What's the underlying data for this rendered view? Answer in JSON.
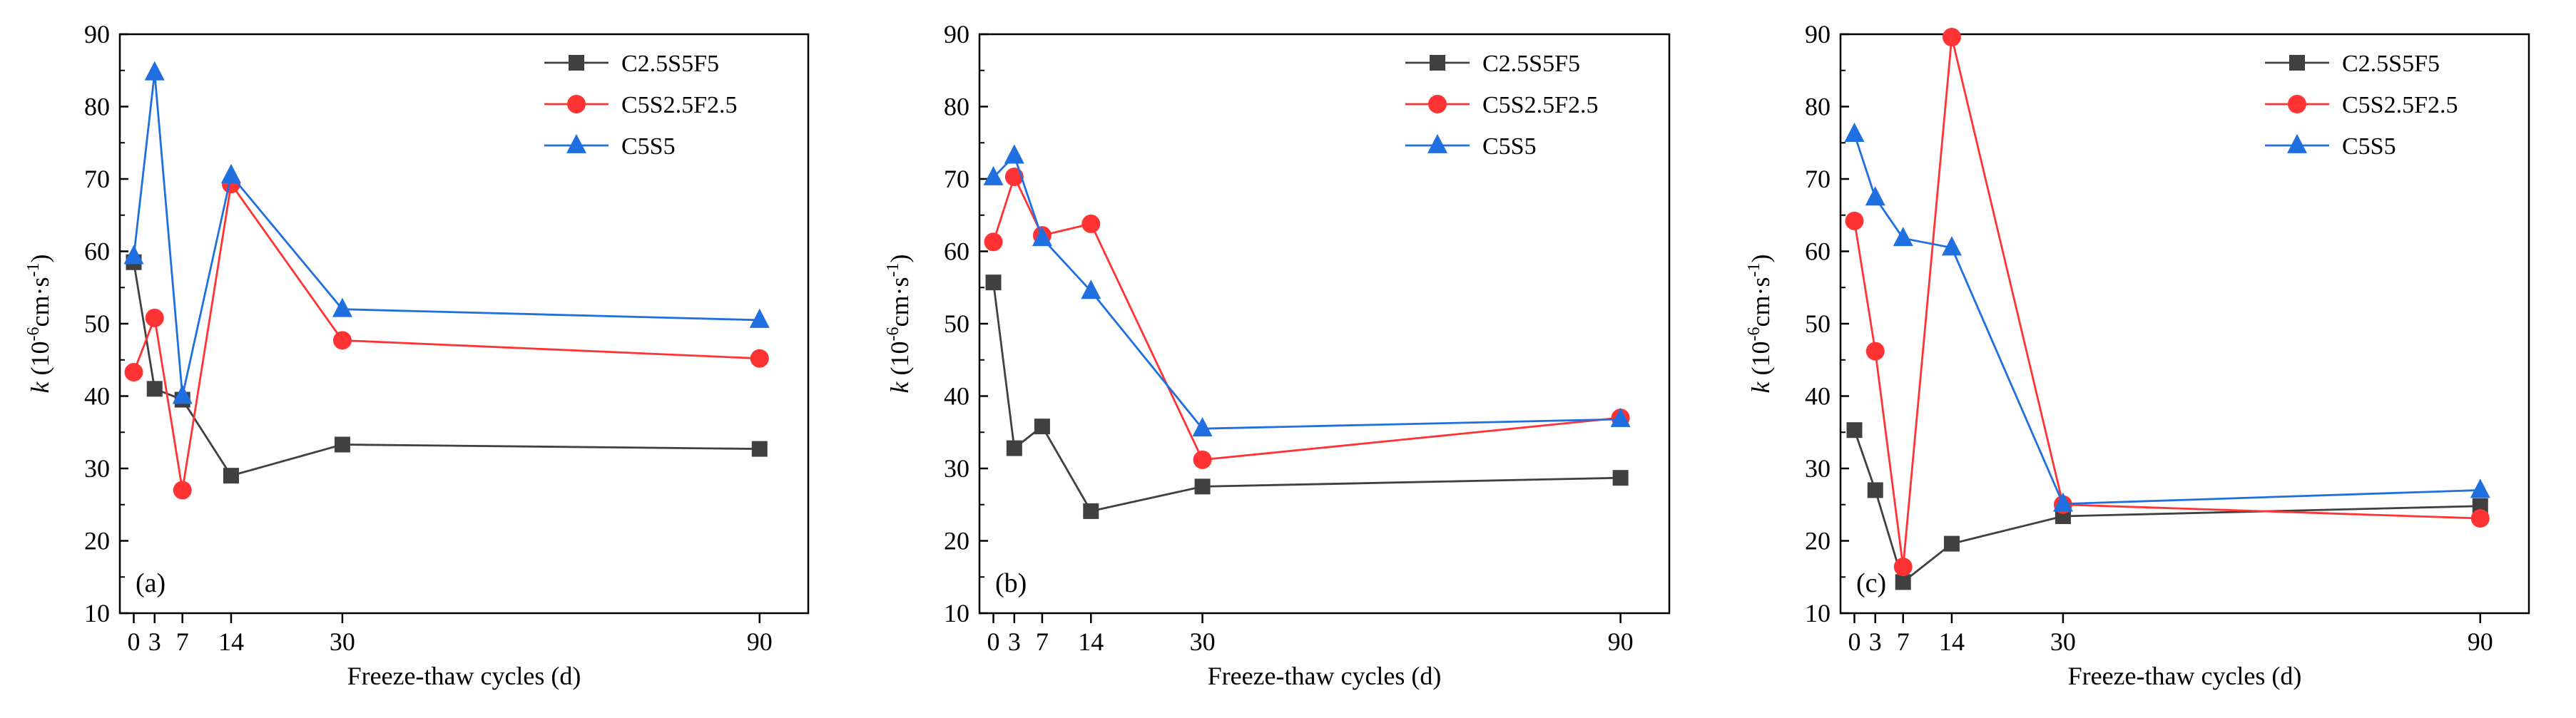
{
  "figure": {
    "colors": {
      "C2.5S5F5": "#404040",
      "C5S2.5F2.5": "#ff3333",
      "C5S5": "#1f6fe0"
    },
    "ylabel": {
      "prefix": "k",
      "text": " (10",
      "sup1": "-6",
      "mid": "cm·s",
      "sup2": "-1",
      "suffix": ")"
    }
  },
  "chart_data": [
    {
      "type": "line",
      "panel_label": "(a)",
      "xlabel": "Freeze-thaw cycles (d)",
      "ylabel": "k (10^-6 cm·s^-1)",
      "xlim": [
        -2,
        97
      ],
      "ylim": [
        10,
        90
      ],
      "xticks": [
        0,
        3,
        7,
        14,
        30,
        90
      ],
      "yticks": [
        10,
        20,
        30,
        40,
        50,
        60,
        70,
        80,
        90
      ],
      "legend_position": "top-right",
      "series": [
        {
          "name": "C2.5S5F5",
          "x": [
            0,
            3,
            7,
            14,
            30,
            90
          ],
          "values": [
            58.5,
            41,
            39.5,
            29,
            33.3,
            32.7
          ],
          "marker": "square"
        },
        {
          "name": "C5S2.5F2.5",
          "x": [
            0,
            3,
            7,
            14,
            30,
            90
          ],
          "values": [
            43.3,
            50.8,
            27,
            69.3,
            47.7,
            45.2
          ],
          "marker": "circle"
        },
        {
          "name": "C5S5",
          "x": [
            0,
            3,
            7,
            14,
            30,
            90
          ],
          "values": [
            59.3,
            84.7,
            40,
            70.5,
            52,
            50.5
          ],
          "marker": "triangle"
        }
      ]
    },
    {
      "type": "line",
      "panel_label": "(b)",
      "xlabel": "Freeze-thaw cycles (d)",
      "ylabel": "k (10^-6 cm·s^-1)",
      "xlim": [
        -2,
        97
      ],
      "ylim": [
        10,
        90
      ],
      "xticks": [
        0,
        3,
        7,
        14,
        30,
        90
      ],
      "yticks": [
        10,
        20,
        30,
        40,
        50,
        60,
        70,
        80,
        90
      ],
      "legend_position": "top-right",
      "series": [
        {
          "name": "C2.5S5F5",
          "x": [
            0,
            3,
            7,
            14,
            30,
            90
          ],
          "values": [
            55.7,
            32.8,
            35.8,
            24.1,
            27.5,
            28.7
          ],
          "marker": "square"
        },
        {
          "name": "C5S2.5F2.5",
          "x": [
            0,
            3,
            7,
            14,
            30,
            90
          ],
          "values": [
            61.3,
            70.3,
            62.2,
            63.8,
            31.2,
            37
          ],
          "marker": "circle"
        },
        {
          "name": "C5S5",
          "x": [
            0,
            3,
            7,
            14,
            30,
            90
          ],
          "values": [
            70.2,
            73.2,
            61.8,
            54.5,
            35.5,
            36.8
          ],
          "marker": "triangle"
        }
      ]
    },
    {
      "type": "line",
      "panel_label": "(c)",
      "xlabel": "Freeze-thaw cycles (d)",
      "ylabel": "k (10^-6 cm·s^-1)",
      "xlim": [
        -2,
        97
      ],
      "ylim": [
        10,
        90
      ],
      "xticks": [
        0,
        3,
        7,
        14,
        30,
        90
      ],
      "yticks": [
        10,
        20,
        30,
        40,
        50,
        60,
        70,
        80,
        90
      ],
      "legend_position": "top-right",
      "series": [
        {
          "name": "C2.5S5F5",
          "x": [
            0,
            3,
            7,
            14,
            30,
            90
          ],
          "values": [
            35.3,
            27,
            14.3,
            19.6,
            23.4,
            24.8
          ],
          "marker": "square"
        },
        {
          "name": "C5S2.5F2.5",
          "x": [
            0,
            3,
            7,
            14,
            30,
            90
          ],
          "values": [
            64.2,
            46.2,
            16.4,
            89.6,
            25,
            23.1
          ],
          "marker": "circle"
        },
        {
          "name": "C5S5",
          "x": [
            0,
            3,
            7,
            14,
            30,
            90
          ],
          "values": [
            76.2,
            67.4,
            61.8,
            60.5,
            25.1,
            27
          ],
          "marker": "triangle"
        }
      ]
    }
  ]
}
